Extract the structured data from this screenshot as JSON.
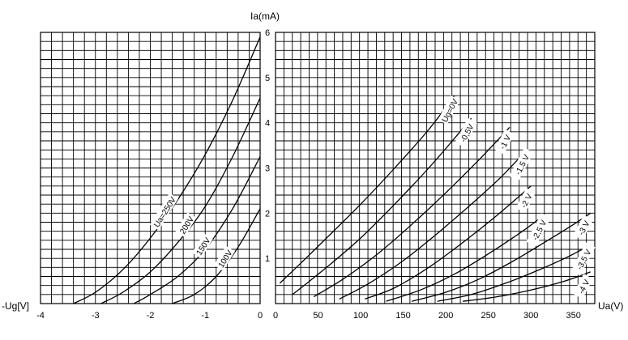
{
  "chart_data": [
    {
      "type": "line",
      "panel": "transfer",
      "xlabel": "-Ug[V]",
      "ylabel": "Ia(mA)",
      "xlim": [
        -4,
        0
      ],
      "ylim": [
        0,
        6
      ],
      "x_ticks": [
        "-4",
        "-3",
        "-2",
        "-1",
        "0"
      ],
      "y_ticks": [
        "1",
        "2",
        "3",
        "4",
        "5",
        "6"
      ],
      "grid": true,
      "series": [
        {
          "name": "Ua=250V",
          "points": [
            [
              -3.4,
              0
            ],
            [
              -3.0,
              0.25
            ],
            [
              -2.5,
              0.75
            ],
            [
              -2.0,
              1.45
            ],
            [
              -1.5,
              2.3
            ],
            [
              -1.0,
              3.3
            ],
            [
              -0.5,
              4.5
            ],
            [
              0,
              5.9
            ]
          ]
        },
        {
          "name": "200V",
          "points": [
            [
              -2.9,
              0
            ],
            [
              -2.5,
              0.25
            ],
            [
              -2.0,
              0.7
            ],
            [
              -1.5,
              1.35
            ],
            [
              -1.0,
              2.15
            ],
            [
              -0.5,
              3.25
            ],
            [
              0,
              4.55
            ]
          ]
        },
        {
          "name": "150V",
          "points": [
            [
              -2.3,
              0
            ],
            [
              -2.0,
              0.2
            ],
            [
              -1.5,
              0.6
            ],
            [
              -1.0,
              1.2
            ],
            [
              -0.5,
              2.1
            ],
            [
              0,
              3.25
            ]
          ]
        },
        {
          "name": "100V",
          "points": [
            [
              -1.6,
              0
            ],
            [
              -1.2,
              0.2
            ],
            [
              -0.8,
              0.6
            ],
            [
              -0.4,
              1.25
            ],
            [
              0,
              2.1
            ]
          ]
        }
      ]
    },
    {
      "type": "line",
      "panel": "output",
      "xlabel": "Ua(V)",
      "ylabel": "Ia(mA)",
      "xlim": [
        0,
        375
      ],
      "ylim": [
        0,
        6
      ],
      "x_ticks": [
        "0",
        "50",
        "100",
        "150",
        "200",
        "250",
        "300",
        "350"
      ],
      "y_ticks": [
        "1",
        "2",
        "3",
        "4",
        "5",
        "6"
      ],
      "grid": true,
      "series": [
        {
          "name": "Ug=0V",
          "points": [
            [
              5,
              0.45
            ],
            [
              30,
              0.9
            ],
            [
              60,
              1.45
            ],
            [
              100,
              2.2
            ],
            [
              140,
              3.0
            ],
            [
              180,
              3.85
            ],
            [
              210,
              4.6
            ]
          ]
        },
        {
          "name": "-0,5V",
          "points": [
            [
              20,
              0.2
            ],
            [
              60,
              0.8
            ],
            [
              100,
              1.45
            ],
            [
              140,
              2.2
            ],
            [
              180,
              3.0
            ],
            [
              210,
              3.65
            ],
            [
              230,
              4.1
            ]
          ]
        },
        {
          "name": "-1 V",
          "points": [
            [
              45,
              0.15
            ],
            [
              80,
              0.55
            ],
            [
              120,
              1.1
            ],
            [
              160,
              1.75
            ],
            [
              200,
              2.45
            ],
            [
              240,
              3.2
            ],
            [
              275,
              3.9
            ]
          ]
        },
        {
          "name": "-1,5 V",
          "points": [
            [
              75,
              0.1
            ],
            [
              110,
              0.45
            ],
            [
              150,
              0.95
            ],
            [
              190,
              1.55
            ],
            [
              230,
              2.2
            ],
            [
              265,
              2.8
            ],
            [
              295,
              3.4
            ]
          ]
        },
        {
          "name": "-2 V",
          "points": [
            [
              105,
              0.1
            ],
            [
              140,
              0.35
            ],
            [
              180,
              0.8
            ],
            [
              220,
              1.35
            ],
            [
              260,
              1.95
            ],
            [
              300,
              2.6
            ]
          ]
        },
        {
          "name": "-2,5 V",
          "points": [
            [
              130,
              0.05
            ],
            [
              170,
              0.3
            ],
            [
              210,
              0.65
            ],
            [
              250,
              1.1
            ],
            [
              290,
              1.6
            ],
            [
              315,
              1.95
            ]
          ]
        },
        {
          "name": "-3 V",
          "points": [
            [
              160,
              0.05
            ],
            [
              200,
              0.25
            ],
            [
              240,
              0.55
            ],
            [
              280,
              0.95
            ],
            [
              320,
              1.4
            ],
            [
              350,
              1.75
            ],
            [
              370,
              2.0
            ]
          ]
        },
        {
          "name": "-3,5 V",
          "points": [
            [
              190,
              0.05
            ],
            [
              230,
              0.2
            ],
            [
              270,
              0.45
            ],
            [
              310,
              0.75
            ],
            [
              345,
              1.05
            ],
            [
              370,
              1.3
            ]
          ]
        },
        {
          "name": "-4 V",
          "points": [
            [
              220,
              0.05
            ],
            [
              260,
              0.15
            ],
            [
              300,
              0.3
            ],
            [
              340,
              0.5
            ],
            [
              370,
              0.7
            ]
          ]
        }
      ]
    }
  ]
}
